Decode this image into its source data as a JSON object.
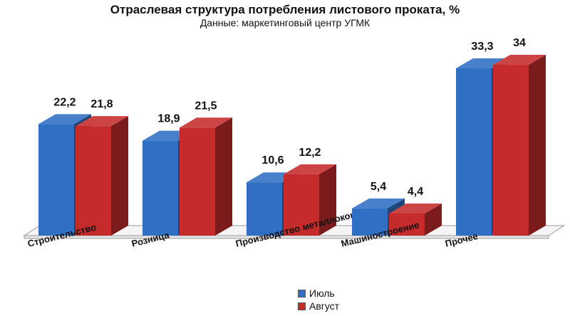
{
  "chart_data": {
    "type": "bar",
    "title": "Отраслевая структура потребления листового проката, %",
    "subtitle": "Данные: маркетинговый центр УГМК",
    "categories": [
      "Строительство",
      "Розница",
      "Производство металлоконструкций",
      "Машиностроение",
      "Прочее"
    ],
    "series": [
      {
        "name": "Июль",
        "values": [
          22.2,
          18.9,
          10.6,
          5.4,
          33.3
        ],
        "labels": [
          "22,2",
          "18,9",
          "10,6",
          "5,4",
          "33,3"
        ],
        "color": "#2f6fc4"
      },
      {
        "name": "Август",
        "values": [
          21.8,
          21.5,
          12.2,
          4.4,
          34
        ],
        "labels": [
          "21,8",
          "21,5",
          "12,2",
          "4,4",
          "34"
        ],
        "color": "#c62b2b"
      }
    ],
    "style": "3d-clustered-column",
    "legend_position": "bottom"
  }
}
